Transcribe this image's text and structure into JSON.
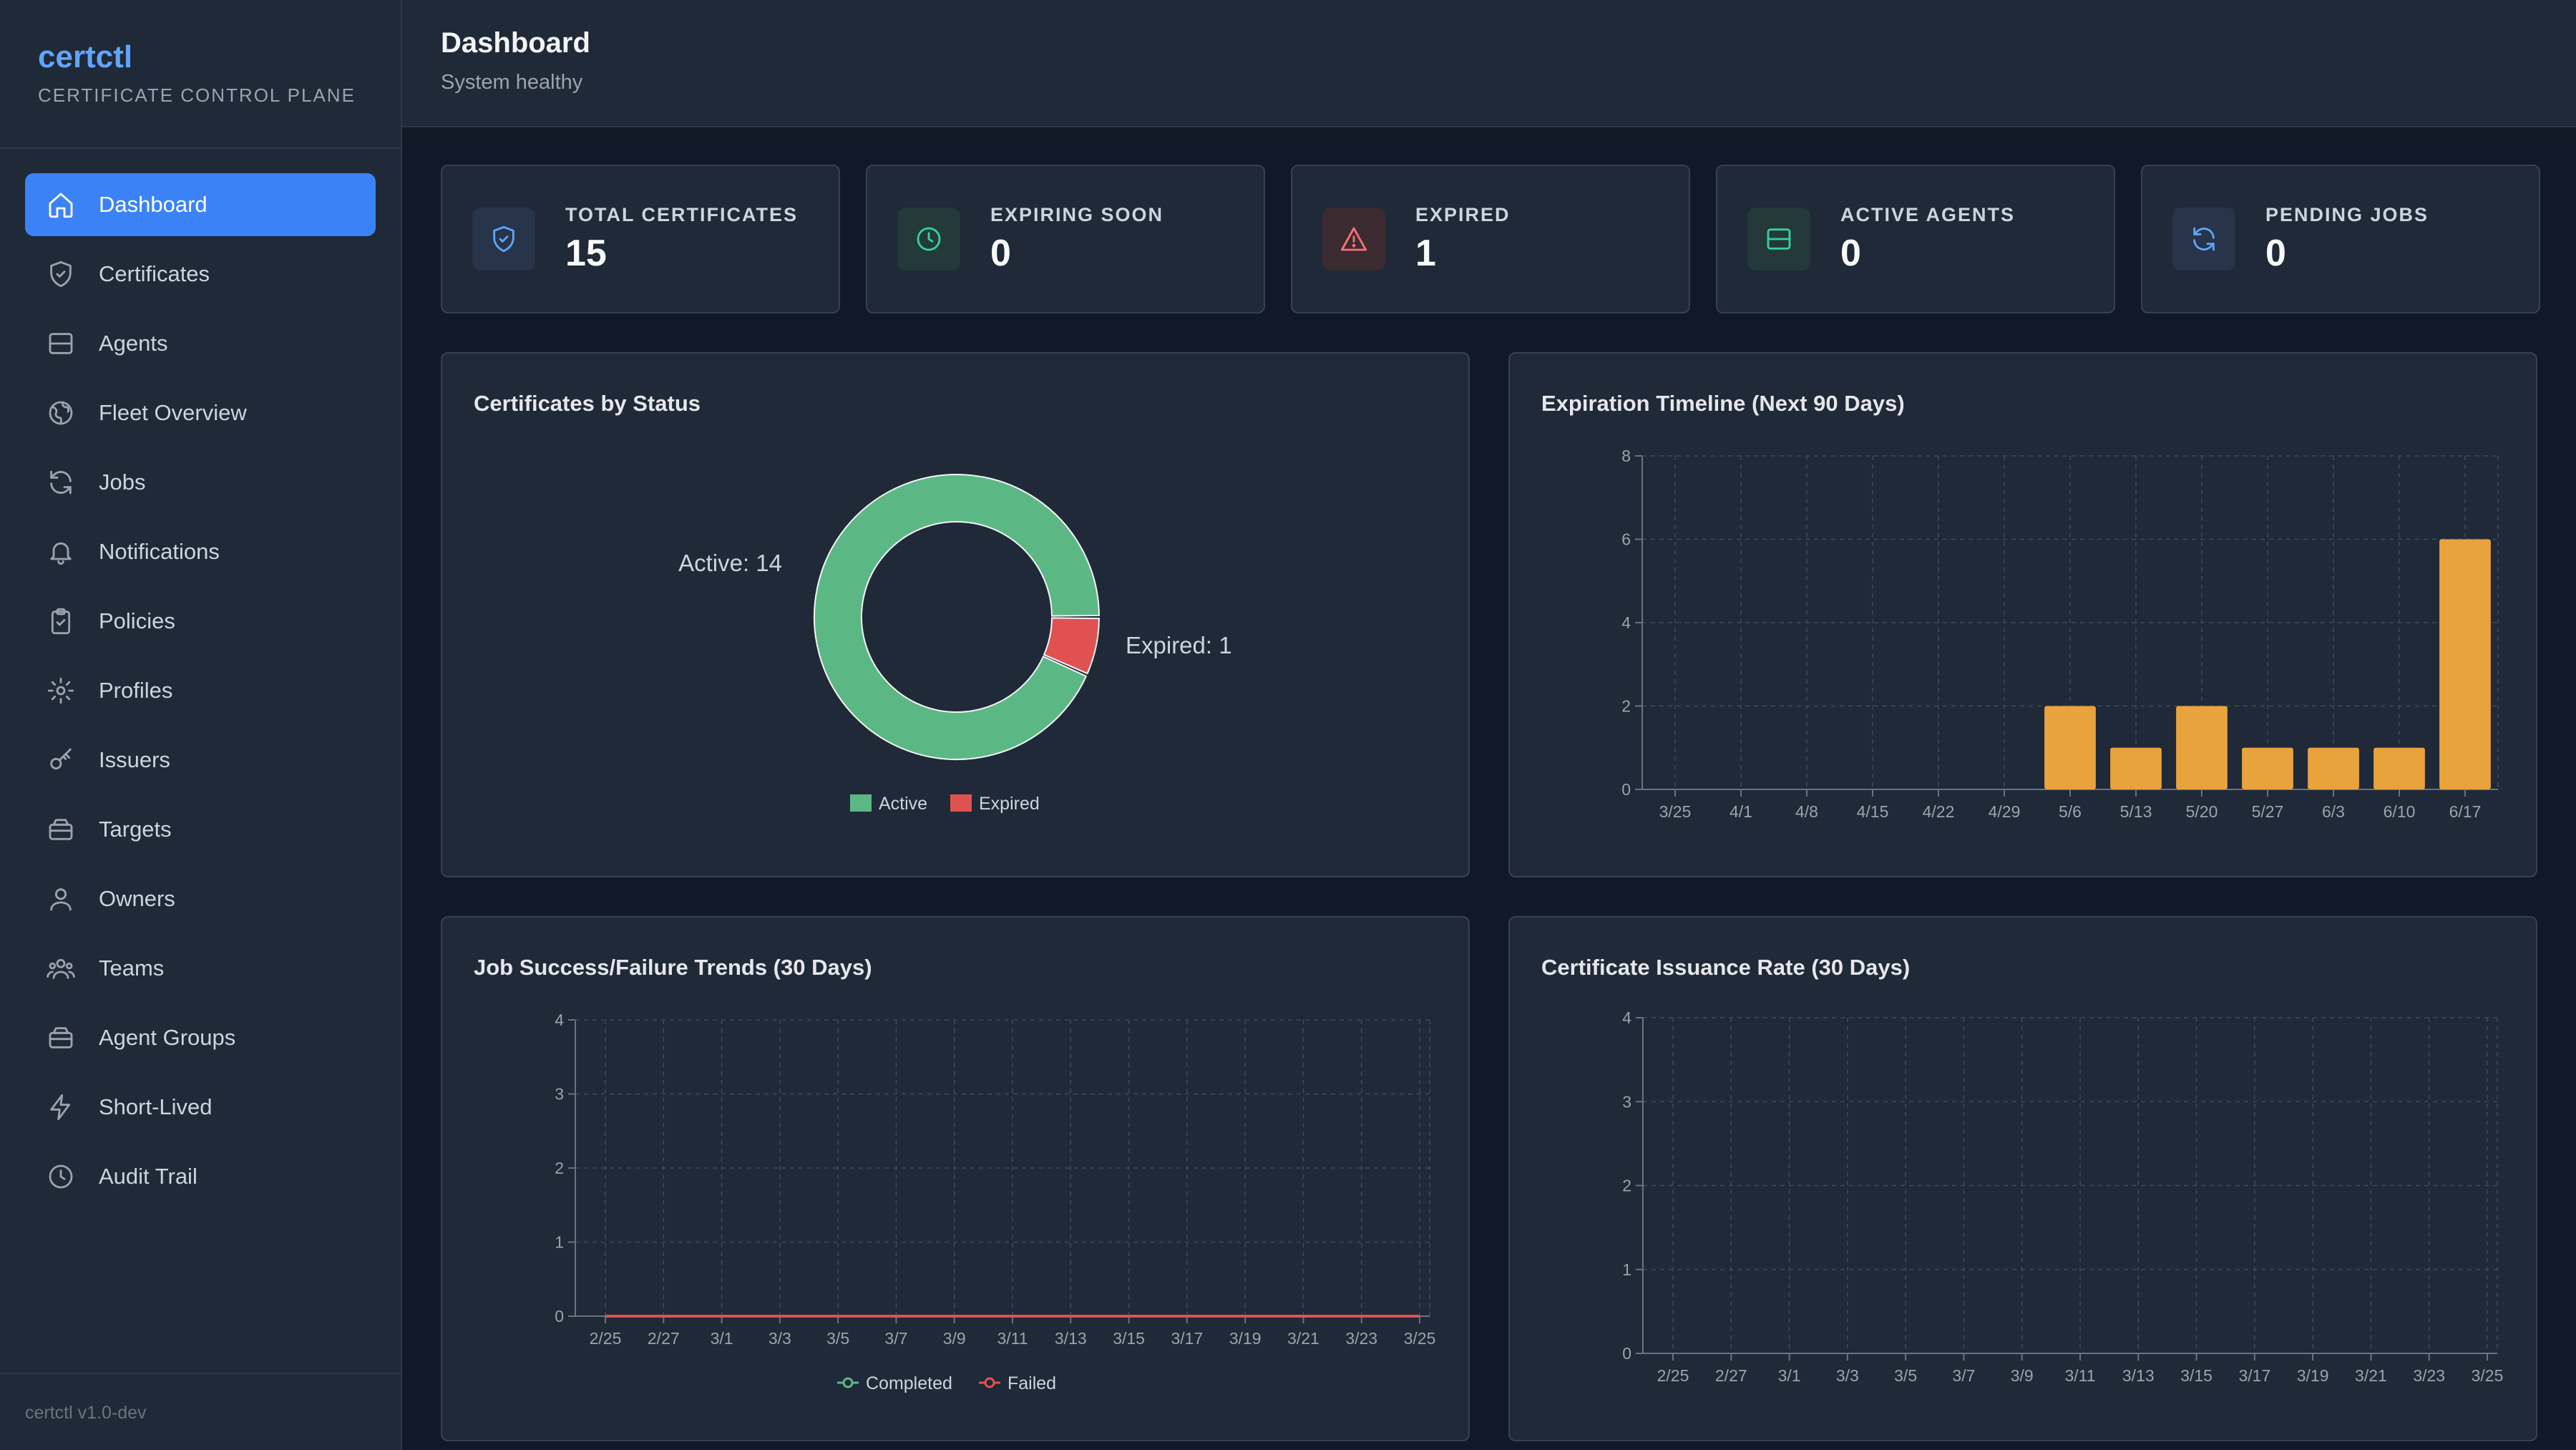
{
  "brand": {
    "name": "certctl",
    "subtitle": "CERTIFICATE CONTROL PLANE"
  },
  "nav": [
    {
      "label": "Dashboard",
      "icon": "home-icon",
      "active": true
    },
    {
      "label": "Certificates",
      "icon": "shield-icon"
    },
    {
      "label": "Agents",
      "icon": "server-icon"
    },
    {
      "label": "Fleet Overview",
      "icon": "globe-icon"
    },
    {
      "label": "Jobs",
      "icon": "refresh-icon"
    },
    {
      "label": "Notifications",
      "icon": "bell-icon"
    },
    {
      "label": "Policies",
      "icon": "clipboard-check-icon"
    },
    {
      "label": "Profiles",
      "icon": "gear-icon"
    },
    {
      "label": "Issuers",
      "icon": "key-icon"
    },
    {
      "label": "Targets",
      "icon": "layers-icon"
    },
    {
      "label": "Owners",
      "icon": "user-icon"
    },
    {
      "label": "Teams",
      "icon": "users-icon"
    },
    {
      "label": "Agent Groups",
      "icon": "layers-icon"
    },
    {
      "label": "Short-Lived",
      "icon": "lightning-icon"
    },
    {
      "label": "Audit Trail",
      "icon": "clock-icon"
    }
  ],
  "footer": {
    "version": "certctl v1.0-dev"
  },
  "header": {
    "title": "Dashboard",
    "subtitle": "System healthy"
  },
  "stats": [
    {
      "label": "TOTAL CERTIFICATES",
      "value": "15",
      "icon": "shield-icon",
      "color": "#60a5fa",
      "bg": "#273449"
    },
    {
      "label": "EXPIRING SOON",
      "value": "0",
      "icon": "clock-icon",
      "color": "#34d399",
      "bg": "#23393a"
    },
    {
      "label": "EXPIRED",
      "value": "1",
      "icon": "warning-icon",
      "color": "#f87171",
      "bg": "#3b2a30"
    },
    {
      "label": "ACTIVE AGENTS",
      "value": "0",
      "icon": "server-icon",
      "color": "#34d399",
      "bg": "#23393a"
    },
    {
      "label": "PENDING JOBS",
      "value": "0",
      "icon": "refresh-icon",
      "color": "#60a5fa",
      "bg": "#273449"
    }
  ],
  "panels": {
    "status": "Certificates by Status",
    "timeline": "Expiration Timeline (Next 90 Days)",
    "jobs": "Job Success/Failure Trends (30 Days)",
    "issuance": "Certificate Issuance Rate (30 Days)"
  },
  "chart_data": [
    {
      "type": "pie",
      "title": "Certificates by Status",
      "slices": [
        {
          "name": "Active",
          "value": 14,
          "label": "Active: 14",
          "color": "#5bb885"
        },
        {
          "name": "Expired",
          "value": 1,
          "label": "Expired: 1",
          "color": "#e05252"
        }
      ],
      "legend": "bottom"
    },
    {
      "type": "bar",
      "title": "Expiration Timeline (Next 90 Days)",
      "categories": [
        "3/25",
        "4/1",
        "4/8",
        "4/15",
        "4/22",
        "4/29",
        "5/6",
        "5/13",
        "5/20",
        "5/27",
        "6/3",
        "6/10",
        "6/17"
      ],
      "values": [
        0,
        0,
        0,
        0,
        0,
        0,
        2,
        1,
        2,
        1,
        1,
        1,
        6
      ],
      "ylim": [
        0,
        8
      ],
      "yticks": [
        0,
        2,
        4,
        6,
        8
      ],
      "color": "#e8a33d",
      "grid": true
    },
    {
      "type": "line",
      "title": "Job Success/Failure Trends (30 Days)",
      "x": [
        "2/25",
        "2/27",
        "3/1",
        "3/3",
        "3/5",
        "3/7",
        "3/9",
        "3/11",
        "3/13",
        "3/15",
        "3/17",
        "3/19",
        "3/21",
        "3/23",
        "3/25"
      ],
      "series": [
        {
          "name": "Completed",
          "values": [
            0,
            0,
            0,
            0,
            0,
            0,
            0,
            0,
            0,
            0,
            0,
            0,
            0,
            0,
            0
          ],
          "color": "#5bb885"
        },
        {
          "name": "Failed",
          "values": [
            0,
            0,
            0,
            0,
            0,
            0,
            0,
            0,
            0,
            0,
            0,
            0,
            0,
            0,
            0
          ],
          "color": "#e05252"
        }
      ],
      "ylim": [
        0,
        4
      ],
      "yticks": [
        0,
        1,
        2,
        3,
        4
      ],
      "grid": true,
      "legend": "bottom"
    },
    {
      "type": "line",
      "title": "Certificate Issuance Rate (30 Days)",
      "x": [
        "2/25",
        "2/27",
        "3/1",
        "3/3",
        "3/5",
        "3/7",
        "3/9",
        "3/11",
        "3/13",
        "3/15",
        "3/17",
        "3/19",
        "3/21",
        "3/23",
        "3/25"
      ],
      "series": [],
      "ylim": [
        0,
        4
      ],
      "yticks": [
        0,
        1,
        2,
        3,
        4
      ],
      "grid": true
    }
  ]
}
